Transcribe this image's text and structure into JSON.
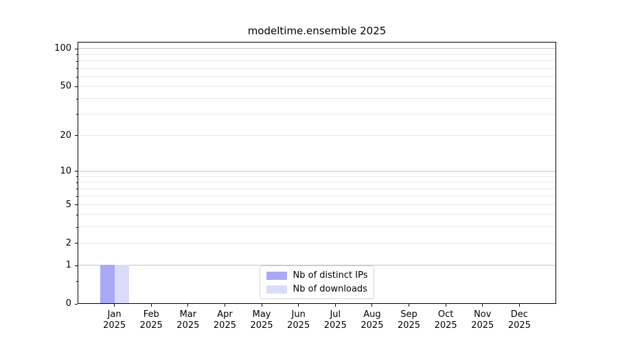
{
  "figure": {
    "title": "modeltime.ensemble 2025",
    "background": "#ffffff"
  },
  "chart_data": {
    "type": "bar",
    "title": "modeltime.ensemble 2025",
    "x_categories": [
      "Jan 2025",
      "Feb 2025",
      "Mar 2025",
      "Apr 2025",
      "May 2025",
      "Jun 2025",
      "Jul 2025",
      "Aug 2025",
      "Sep 2025",
      "Oct 2025",
      "Nov 2025",
      "Dec 2025"
    ],
    "series": [
      {
        "name": "Nb of distinct IPs",
        "color": "#a9a9f6",
        "values": [
          1,
          0,
          0,
          0,
          0,
          0,
          0,
          0,
          0,
          0,
          0,
          0
        ]
      },
      {
        "name": "Nb of downloads",
        "color": "#dcdcf9",
        "values": [
          1,
          0,
          0,
          0,
          0,
          0,
          0,
          0,
          0,
          0,
          0,
          0
        ]
      }
    ],
    "y_axis": {
      "scale": "log1p",
      "max": 114,
      "ticks": [
        0,
        1,
        2,
        5,
        10,
        20,
        50,
        100
      ],
      "minor_ticks": [
        0.5,
        3,
        4,
        6,
        7,
        8,
        9,
        30,
        40,
        60,
        70,
        80,
        90
      ]
    },
    "grid": {
      "emphasized_levels": [
        1,
        10,
        100
      ],
      "major_color": "#c3c3c3",
      "minor_color": "#e9e9e9"
    },
    "legend": {
      "position": "lower center",
      "entries": [
        "Nb of distinct IPs",
        "Nb of downloads"
      ]
    }
  }
}
